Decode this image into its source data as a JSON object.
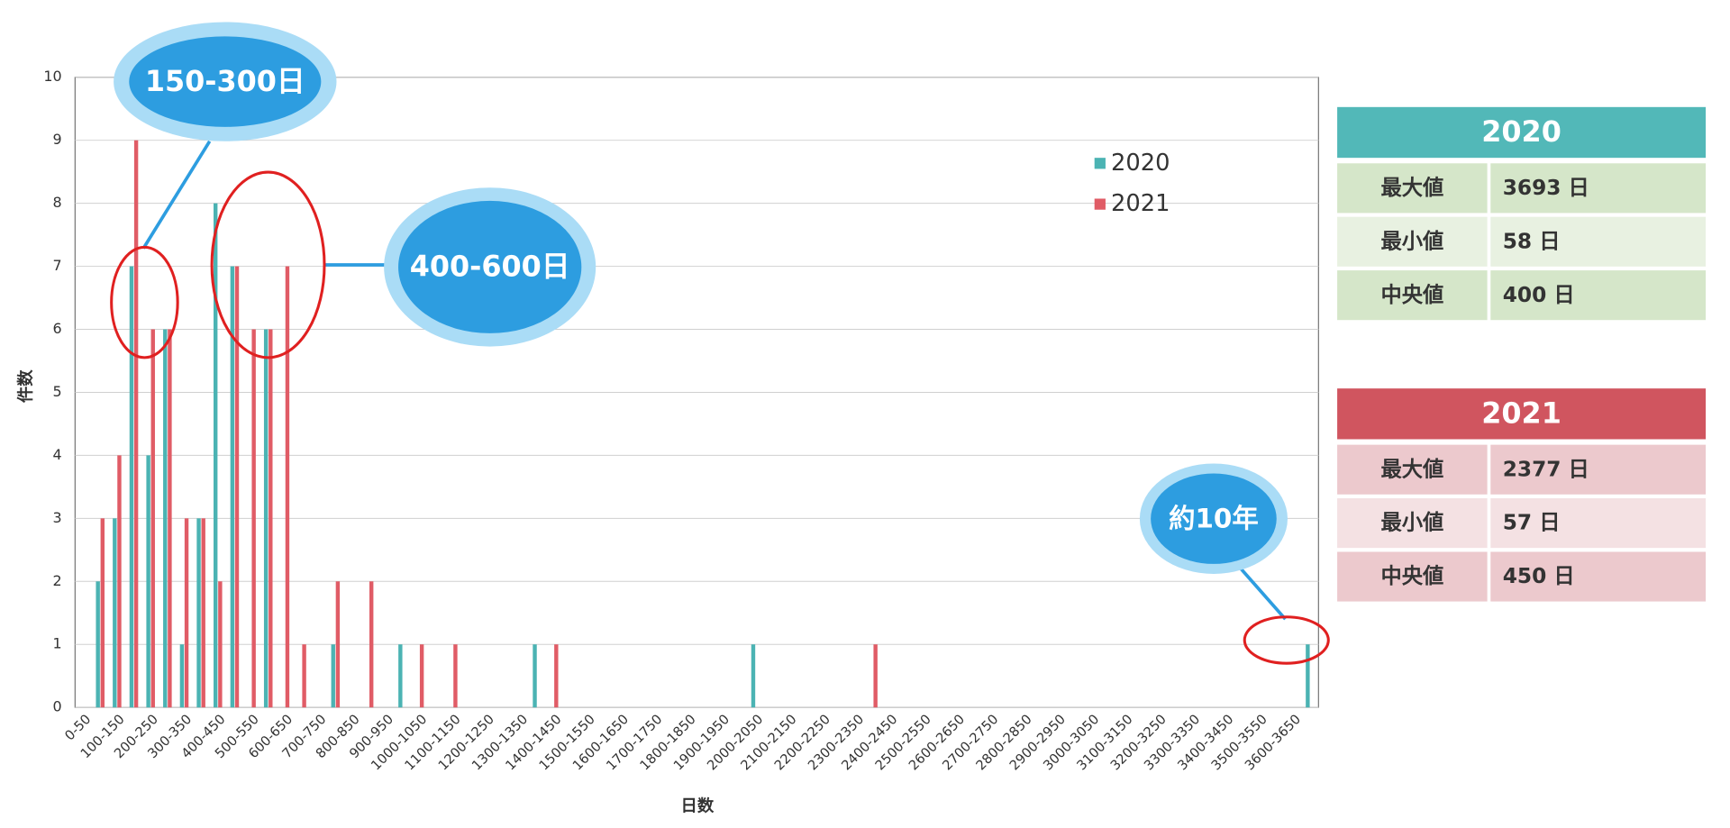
{
  "chart_data": {
    "type": "bar",
    "x_label": "日数",
    "y_label": "件数",
    "categories": [
      "0-50",
      null,
      "100-150",
      null,
      "200-250",
      null,
      "300-350",
      null,
      "400-450",
      null,
      "500-550",
      null,
      "600-650",
      null,
      "700-750",
      null,
      "800-850",
      null,
      "900-950",
      null,
      "1000-1050",
      null,
      "1100-1150",
      null,
      "1200-1250",
      null,
      "1300-1350",
      null,
      "1400-1450",
      null,
      "1500-1550",
      null,
      "1600-1650",
      null,
      "1700-1750",
      null,
      "1800-1850",
      null,
      "1900-1950",
      null,
      "2000-2050",
      null,
      "2100-2150",
      null,
      "2200-2250",
      null,
      "2300-2350",
      null,
      "2400-2450",
      null,
      "2500-2550",
      null,
      "2600-2650",
      null,
      "2700-2750",
      null,
      "2800-2850",
      null,
      "2900-2950",
      null,
      "3000-3050",
      null,
      "3100-3150",
      null,
      "3200-3250",
      null,
      "3300-3350",
      null,
      "3400-3450",
      null,
      "3500-3550",
      null,
      "3600-3650",
      null
    ],
    "series": [
      {
        "name": "2020",
        "color": "#4bb3b3",
        "values": [
          0,
          2,
          3,
          7,
          4,
          6,
          1,
          3,
          8,
          7,
          0,
          6,
          0,
          0,
          0,
          1,
          0,
          0,
          0,
          1,
          0,
          0,
          0,
          0,
          0,
          0,
          0,
          1,
          0,
          0,
          0,
          0,
          0,
          0,
          0,
          0,
          0,
          0,
          0,
          0,
          1,
          0,
          0,
          0,
          0,
          0,
          0,
          0,
          0,
          0,
          0,
          0,
          0,
          0,
          0,
          0,
          0,
          0,
          0,
          0,
          0,
          0,
          0,
          0,
          0,
          0,
          0,
          0,
          0,
          0,
          0,
          0,
          0,
          1
        ]
      },
      {
        "name": "2021",
        "color": "#e05c66",
        "values": [
          0,
          3,
          4,
          9,
          6,
          6,
          3,
          3,
          2,
          7,
          6,
          6,
          7,
          1,
          0,
          2,
          0,
          2,
          0,
          0,
          1,
          0,
          1,
          0,
          0,
          0,
          0,
          0,
          1,
          0,
          0,
          0,
          0,
          0,
          0,
          0,
          0,
          0,
          0,
          0,
          0,
          0,
          0,
          0,
          0,
          0,
          0,
          1,
          0,
          0,
          0,
          0,
          0,
          0,
          0,
          0,
          0,
          0,
          0,
          0,
          0,
          0,
          0,
          0,
          0,
          0,
          0,
          0,
          0,
          0,
          0,
          0,
          0,
          0
        ]
      }
    ],
    "ylim": [
      0,
      10
    ],
    "yticks": [
      0,
      1,
      2,
      3,
      4,
      5,
      6,
      7,
      8,
      9,
      10
    ],
    "grid": true,
    "legend": "upper right",
    "annotations": [
      "150-300日",
      "400-600日",
      "約10年"
    ]
  },
  "stats_tables": [
    {
      "title": "2020",
      "rows": [
        [
          "最大値",
          "3693 日"
        ],
        [
          "最小値",
          "58 日"
        ],
        [
          "中央値",
          "400 日"
        ]
      ]
    },
    {
      "title": "2021",
      "rows": [
        [
          "最大値",
          "2377 日"
        ],
        [
          "最小値",
          "57 日"
        ],
        [
          "中央値",
          "450 日"
        ]
      ]
    }
  ]
}
